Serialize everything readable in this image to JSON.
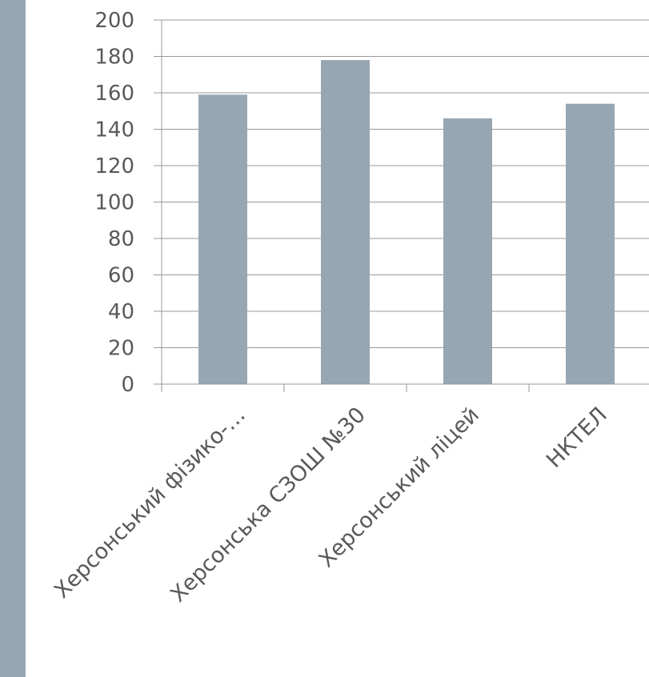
{
  "colors": {
    "bar": "#97a6b3",
    "grid": "#999999",
    "text": "#595959",
    "side_bar": "#97a6b3"
  },
  "chart_data": {
    "type": "bar",
    "categories": [
      "Херсонський фізико-…",
      "Херсонська СЗОШ №30",
      "Херсонський ліцей",
      "НКТЕЛ"
    ],
    "values": [
      159,
      178,
      146,
      154
    ],
    "ylim": [
      0,
      200
    ],
    "yticks": [
      0,
      20,
      40,
      60,
      80,
      100,
      120,
      140,
      160,
      180,
      200
    ],
    "title": "",
    "xlabel": "",
    "ylabel": "",
    "grid": true,
    "legend": "none"
  }
}
